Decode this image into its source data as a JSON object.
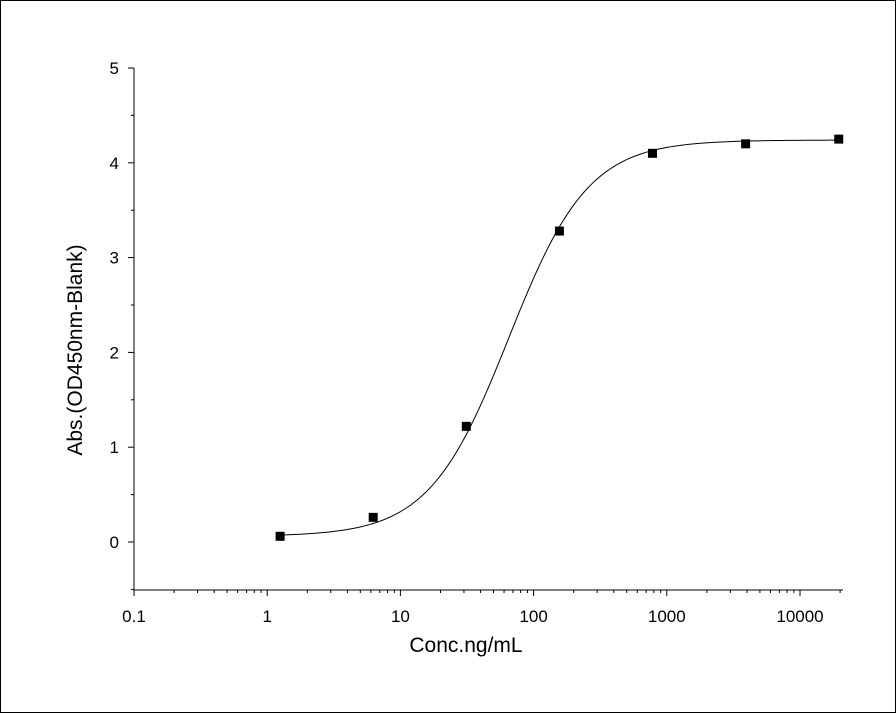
{
  "chart_data": {
    "type": "scatter",
    "title": "",
    "xlabel": "Conc.ng/mL",
    "ylabel": "Abs.(OD450nm-Blank)",
    "x_scale": "log",
    "xlim": [
      0.1,
      22000
    ],
    "ylim": [
      -0.5,
      5
    ],
    "x_ticks": [
      0.1,
      1,
      10,
      100,
      1000,
      10000
    ],
    "x_tick_labels": [
      "0.1",
      "1",
      "10",
      "100",
      "1000",
      "10000"
    ],
    "y_ticks": [
      0,
      1,
      2,
      3,
      4,
      5
    ],
    "y_tick_labels": [
      "0",
      "1",
      "2",
      "3",
      "4",
      "5"
    ],
    "grid": false,
    "legend": "none",
    "fit": "4-parameter logistic curve",
    "points": [
      {
        "x": 1.25,
        "y": 0.06
      },
      {
        "x": 6.25,
        "y": 0.26
      },
      {
        "x": 31.25,
        "y": 1.22
      },
      {
        "x": 156.25,
        "y": 3.28
      },
      {
        "x": 781.25,
        "y": 4.1
      },
      {
        "x": 3906.25,
        "y": 4.2
      },
      {
        "x": 19531.25,
        "y": 4.25
      }
    ],
    "colors": {
      "marker": "#000000",
      "line": "#000000"
    }
  }
}
